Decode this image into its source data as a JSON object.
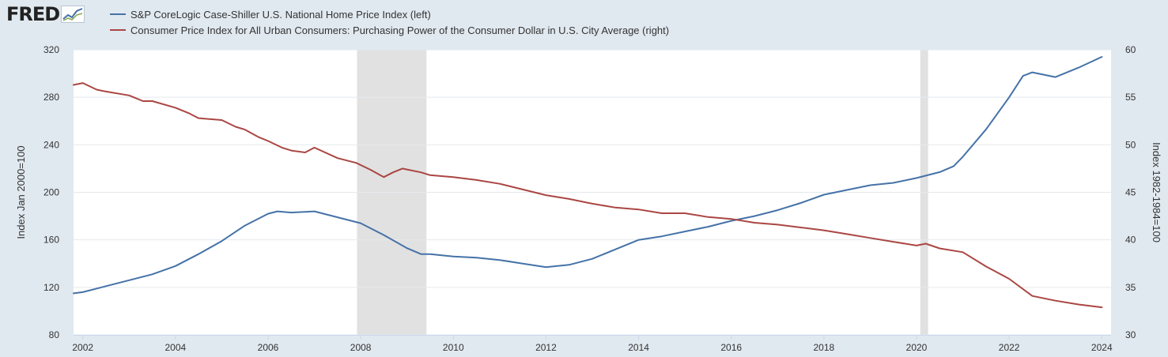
{
  "logo": {
    "text": "FRED",
    "icon": "mini-line-chart-icon"
  },
  "colors": {
    "background": "#e1e9f0",
    "plot_background": "#ffffff",
    "gridline": "#e5e9ee",
    "recession": "#e1e1e1",
    "series_left": "#4572a7",
    "series_right": "#aa4643"
  },
  "chart_data": {
    "type": "line",
    "title": "",
    "legend_position": "top-left",
    "x_range": [
      2001.8,
      2024.2
    ],
    "x_ticks": [
      2002,
      2004,
      2006,
      2008,
      2010,
      2012,
      2014,
      2016,
      2018,
      2020,
      2022,
      2024
    ],
    "x_tick_labels": [
      "2002",
      "2004",
      "2006",
      "2008",
      "2010",
      "2012",
      "2014",
      "2016",
      "2018",
      "2020",
      "2022",
      "2024"
    ],
    "left_axis": {
      "label": "Index Jan 2000=100",
      "range": [
        80,
        320
      ],
      "ticks": [
        80,
        120,
        160,
        200,
        240,
        280,
        320
      ],
      "tick_labels": [
        "80",
        "120",
        "160",
        "200",
        "240",
        "280",
        "320"
      ]
    },
    "right_axis": {
      "label": "Index 1982-1984=100",
      "range": [
        30,
        60
      ],
      "ticks": [
        30,
        35,
        40,
        45,
        50,
        55,
        60
      ],
      "tick_labels": [
        "30",
        "35",
        "40",
        "45",
        "50",
        "55",
        "60"
      ]
    },
    "recessions": [
      {
        "start": 2007.92,
        "end": 2009.42
      },
      {
        "start": 2020.08,
        "end": 2020.25
      }
    ],
    "series": [
      {
        "name": "S&P CoreLogic Case-Shiller U.S. National Home Price Index (left)",
        "axis": "left",
        "x": [
          2001.8,
          2002.0,
          2002.5,
          2003.0,
          2003.5,
          2004.0,
          2004.5,
          2005.0,
          2005.5,
          2006.0,
          2006.2,
          2006.5,
          2007.0,
          2007.5,
          2008.0,
          2008.5,
          2009.0,
          2009.3,
          2009.5,
          2010.0,
          2010.5,
          2011.0,
          2011.5,
          2012.0,
          2012.5,
          2013.0,
          2013.5,
          2014.0,
          2014.5,
          2015.0,
          2015.5,
          2016.0,
          2016.5,
          2017.0,
          2017.5,
          2018.0,
          2018.5,
          2019.0,
          2019.5,
          2020.0,
          2020.5,
          2020.8,
          2021.0,
          2021.5,
          2022.0,
          2022.3,
          2022.5,
          2023.0,
          2023.5,
          2024.0
        ],
        "values": [
          115,
          116,
          121,
          126,
          131,
          138,
          148,
          159,
          172,
          182,
          184,
          183,
          184,
          179,
          174,
          164,
          153,
          148,
          148,
          146,
          145,
          143,
          140,
          137,
          139,
          144,
          152,
          160,
          163,
          167,
          171,
          176,
          180,
          185,
          191,
          198,
          202,
          206,
          208,
          212,
          217,
          222,
          230,
          253,
          280,
          298,
          301,
          297,
          305,
          314
        ]
      },
      {
        "name": "Consumer Price Index for All Urban Consumers: Purchasing Power of the Consumer Dollar in U.S. City Average (right)",
        "axis": "right",
        "x": [
          2001.8,
          2002.0,
          2002.3,
          2002.5,
          2003.0,
          2003.3,
          2003.5,
          2004.0,
          2004.3,
          2004.5,
          2005.0,
          2005.3,
          2005.5,
          2005.8,
          2006.0,
          2006.3,
          2006.5,
          2006.8,
          2007.0,
          2007.5,
          2007.9,
          2008.2,
          2008.5,
          2008.7,
          2008.9,
          2009.0,
          2009.3,
          2009.5,
          2010.0,
          2010.5,
          2011.0,
          2011.5,
          2012.0,
          2012.5,
          2013.0,
          2013.5,
          2014.0,
          2014.5,
          2015.0,
          2015.5,
          2016.0,
          2016.5,
          2017.0,
          2017.5,
          2018.0,
          2018.5,
          2019.0,
          2019.5,
          2020.0,
          2020.2,
          2020.5,
          2021.0,
          2021.5,
          2022.0,
          2022.5,
          2023.0,
          2023.5,
          2024.0
        ],
        "values": [
          56.3,
          56.5,
          55.8,
          55.6,
          55.2,
          54.6,
          54.6,
          53.9,
          53.3,
          52.8,
          52.6,
          51.9,
          51.6,
          50.8,
          50.4,
          49.7,
          49.4,
          49.2,
          49.7,
          48.6,
          48.1,
          47.4,
          46.6,
          47.1,
          47.5,
          47.4,
          47.1,
          46.8,
          46.6,
          46.3,
          45.9,
          45.3,
          44.7,
          44.3,
          43.8,
          43.4,
          43.2,
          42.8,
          42.8,
          42.4,
          42.2,
          41.8,
          41.6,
          41.3,
          41.0,
          40.6,
          40.2,
          39.8,
          39.4,
          39.6,
          39.1,
          38.7,
          37.2,
          35.9,
          34.1,
          33.6,
          33.2,
          32.9
        ]
      }
    ]
  }
}
